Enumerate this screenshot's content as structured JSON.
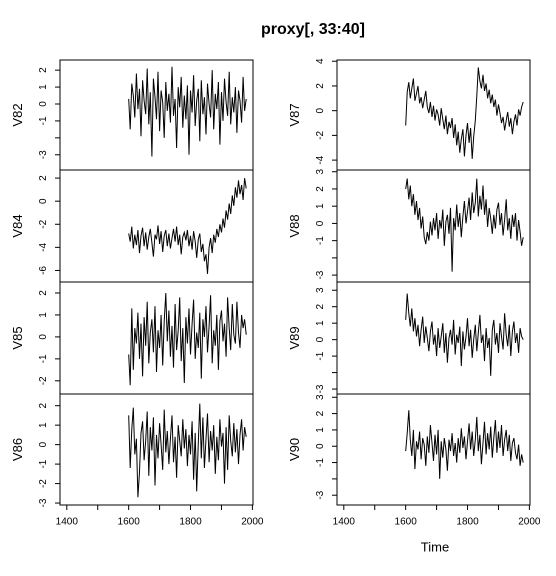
{
  "title": "proxy[, 33:40]",
  "chart_data": {
    "type": "line",
    "xlabel": "Time",
    "color": "#000000",
    "xlim": [
      1378,
      2002
    ],
    "xticks": [
      1400,
      1600,
      1800,
      2000
    ],
    "xminor_ticks": [
      1500,
      1700,
      1900
    ],
    "x": [
      1600,
      1605,
      1610,
      1615,
      1620,
      1625,
      1630,
      1635,
      1640,
      1645,
      1650,
      1655,
      1660,
      1665,
      1670,
      1675,
      1680,
      1685,
      1690,
      1695,
      1700,
      1705,
      1710,
      1715,
      1720,
      1725,
      1730,
      1735,
      1740,
      1745,
      1750,
      1755,
      1760,
      1765,
      1770,
      1775,
      1780,
      1785,
      1790,
      1795,
      1800,
      1805,
      1810,
      1815,
      1820,
      1825,
      1830,
      1835,
      1840,
      1845,
      1850,
      1855,
      1860,
      1865,
      1870,
      1875,
      1880,
      1885,
      1890,
      1895,
      1900,
      1905,
      1910,
      1915,
      1920,
      1925,
      1930,
      1935,
      1940,
      1945,
      1950,
      1955,
      1960,
      1965,
      1970,
      1975,
      1980
    ],
    "series": [
      {
        "name": "V82",
        "ylim": [
          -3.9,
          2.6
        ],
        "yticks": [
          -3,
          -1,
          0,
          1,
          2
        ],
        "yminor_ticks": [
          -2
        ],
        "values": [
          0.3,
          -1.5,
          1.2,
          0.5,
          -0.8,
          1.8,
          -0.3,
          0.9,
          -1.9,
          1.4,
          0.2,
          -0.6,
          2.1,
          -1.2,
          0.7,
          -3.1,
          1.5,
          0.4,
          -0.9,
          1.9,
          -1.6,
          0.8,
          0.1,
          -2.0,
          1.3,
          -0.4,
          0.6,
          -1.1,
          2.2,
          -0.7,
          0.3,
          -2.6,
          1.0,
          -0.2,
          1.6,
          -1.4,
          0.5,
          -0.9,
          1.1,
          -3.0,
          0.8,
          -0.5,
          1.7,
          -1.3,
          0.2,
          0.9,
          -2.2,
          1.4,
          -0.6,
          0.4,
          -1.8,
          1.2,
          0.0,
          -0.8,
          2.0,
          -1.5,
          0.6,
          -0.3,
          1.3,
          -2.4,
          0.7,
          -1.0,
          1.5,
          0.1,
          -0.7,
          1.9,
          -1.2,
          0.4,
          -0.5,
          1.0,
          -1.7,
          0.8,
          0.2,
          -1.1,
          1.6,
          -0.4,
          0.3
        ]
      },
      {
        "name": "V84",
        "ylim": [
          -7,
          2.7
        ],
        "yticks": [
          -6,
          -4,
          -2,
          0,
          2
        ],
        "values": [
          -2.8,
          -3.5,
          -2.2,
          -4.1,
          -2.9,
          -3.8,
          -2.5,
          -4.5,
          -3.0,
          -2.3,
          -3.9,
          -2.7,
          -4.2,
          -3.1,
          -2.4,
          -3.6,
          -4.8,
          -2.9,
          -3.3,
          -2.1,
          -3.7,
          -2.6,
          -4.4,
          -3.0,
          -2.5,
          -3.9,
          -2.8,
          -4.1,
          -3.2,
          -2.4,
          -3.5,
          -2.2,
          -3.8,
          -2.9,
          -4.6,
          -3.1,
          -2.7,
          -3.4,
          -2.5,
          -3.9,
          -3.0,
          -4.2,
          -2.6,
          -3.5,
          -4.9,
          -3.3,
          -2.8,
          -4.4,
          -3.7,
          -5.2,
          -4.6,
          -6.3,
          -4.0,
          -3.2,
          -4.5,
          -2.9,
          -3.6,
          -2.4,
          -3.1,
          -2.0,
          -2.7,
          -1.5,
          -2.3,
          -0.8,
          -1.6,
          -0.2,
          -1.1,
          0.5,
          -0.4,
          1.2,
          0.3,
          1.8,
          0.6,
          1.4,
          0.1,
          2.0,
          1.1
        ]
      },
      {
        "name": "V85",
        "ylim": [
          -2.6,
          2.5
        ],
        "yticks": [
          -2,
          -1,
          0,
          1,
          2
        ],
        "values": [
          -0.8,
          -2.2,
          1.3,
          -1.5,
          0.4,
          -0.3,
          1.1,
          -1.0,
          0.6,
          -1.8,
          0.9,
          -0.4,
          1.6,
          -1.2,
          0.2,
          0.8,
          -0.7,
          1.4,
          -1.6,
          0.3,
          -0.5,
          1.0,
          -1.3,
          0.7,
          2.0,
          -0.2,
          1.2,
          -0.9,
          0.5,
          -1.4,
          1.5,
          -0.6,
          0.3,
          1.8,
          -1.1,
          0.4,
          -2.1,
          0.9,
          -0.3,
          1.3,
          -0.8,
          0.6,
          1.7,
          -1.0,
          0.2,
          -0.5,
          1.1,
          -1.9,
          0.8,
          0.0,
          1.4,
          -0.7,
          0.5,
          1.9,
          -1.2,
          0.3,
          -0.4,
          1.0,
          -1.5,
          0.7,
          1.2,
          -0.2,
          0.6,
          -0.9,
          1.8,
          0.4,
          -0.6,
          1.5,
          0.1,
          -0.3,
          1.6,
          0.2,
          -0.5,
          1.0,
          0.4,
          0.8,
          0.1
        ]
      },
      {
        "name": "V86",
        "ylim": [
          -3.1,
          2.6
        ],
        "yticks": [
          -3,
          -2,
          -1,
          0,
          1,
          2
        ],
        "values": [
          1.5,
          -1.2,
          0.8,
          1.9,
          -0.5,
          0.3,
          -2.7,
          -1.4,
          0.6,
          1.2,
          -0.8,
          0.2,
          1.7,
          -1.6,
          0.9,
          -0.3,
          1.4,
          -2.1,
          0.5,
          -0.7,
          1.1,
          0.0,
          -1.3,
          1.8,
          -0.4,
          0.7,
          -1.0,
          0.3,
          1.5,
          -0.9,
          0.4,
          -1.7,
          1.0,
          0.2,
          -0.6,
          1.3,
          -0.2,
          0.8,
          -1.1,
          0.5,
          -0.5,
          1.2,
          -1.8,
          0.6,
          -2.4,
          0.1,
          2.1,
          -0.7,
          1.4,
          -1.2,
          0.3,
          1.6,
          -0.9,
          0.7,
          -0.3,
          1.0,
          -1.5,
          0.4,
          -0.8,
          1.3,
          -0.1,
          0.6,
          -2.0,
          0.9,
          -1.3,
          1.5,
          0.2,
          -0.6,
          1.1,
          -0.4,
          0.8,
          -1.0,
          0.5,
          1.3,
          -0.3,
          0.9,
          0.4
        ]
      },
      {
        "name": "V87",
        "ylim": [
          -4.8,
          4.1
        ],
        "yticks": [
          -4,
          -2,
          0,
          2,
          4
        ],
        "values": [
          -1.2,
          1.5,
          2.3,
          1.0,
          1.8,
          2.6,
          0.8,
          1.4,
          2.0,
          0.6,
          1.1,
          0.2,
          0.9,
          1.6,
          0.3,
          -0.2,
          0.7,
          -0.5,
          0.4,
          -0.8,
          0.1,
          -0.3,
          -1.2,
          0.2,
          -0.7,
          -1.5,
          -0.4,
          -1.9,
          -0.9,
          -1.4,
          -0.6,
          -2.2,
          -1.1,
          -2.8,
          -1.7,
          -3.4,
          -2.3,
          -1.5,
          -3.7,
          -2.0,
          -1.0,
          -2.6,
          -1.4,
          -3.9,
          -2.1,
          -0.8,
          1.2,
          3.5,
          2.4,
          1.8,
          2.9,
          1.6,
          2.2,
          1.0,
          1.7,
          0.6,
          1.3,
          0.3,
          0.9,
          -0.4,
          0.5,
          -0.2,
          -1.0,
          -0.5,
          -1.6,
          -0.8,
          -0.1,
          -1.3,
          -0.6,
          -1.9,
          -0.9,
          -0.3,
          -1.2,
          0.1,
          -0.4,
          0.3,
          0.7
        ]
      },
      {
        "name": "V88",
        "ylim": [
          -3.4,
          3.1
        ],
        "yticks": [
          -3,
          -1,
          0,
          1,
          2,
          3
        ],
        "yminor_ticks": [
          -2
        ],
        "values": [
          2.0,
          2.6,
          1.4,
          2.2,
          1.0,
          1.7,
          0.5,
          1.3,
          0.2,
          0.9,
          -0.3,
          0.4,
          -0.8,
          -1.2,
          -0.5,
          -1.0,
          0.1,
          -0.7,
          0.3,
          -0.4,
          0.6,
          -0.9,
          0.2,
          -0.3,
          0.8,
          -1.3,
          0.1,
          0.5,
          -0.6,
          0.9,
          -2.8,
          0.3,
          -0.4,
          1.1,
          -0.2,
          0.6,
          -0.8,
          0.4,
          1.3,
          0.0,
          0.7,
          1.5,
          0.2,
          1.8,
          0.6,
          1.2,
          2.6,
          0.4,
          1.6,
          0.8,
          2.2,
          0.5,
          1.4,
          -0.2,
          0.9,
          0.3,
          -0.6,
          0.5,
          -0.3,
          0.8,
          1.2,
          -0.1,
          0.6,
          -0.7,
          0.2,
          1.4,
          -0.4,
          0.3,
          -0.9,
          0.5,
          -0.2,
          0.6,
          -1.0,
          0.2,
          -0.5,
          -1.3,
          -0.8
        ]
      },
      {
        "name": "V89",
        "ylim": [
          -3.3,
          3.5
        ],
        "yticks": [
          -3,
          -1,
          0,
          1,
          2,
          3
        ],
        "yminor_ticks": [
          -2
        ],
        "values": [
          1.2,
          2.8,
          1.6,
          0.8,
          1.9,
          0.5,
          1.3,
          0.2,
          0.9,
          -0.4,
          0.6,
          1.4,
          -0.2,
          0.8,
          0.1,
          -0.7,
          0.5,
          1.1,
          -0.3,
          0.3,
          -1.0,
          0.7,
          -0.5,
          0.2,
          1.0,
          -0.8,
          0.4,
          -1.4,
          0.1,
          0.6,
          -0.3,
          1.2,
          -0.9,
          0.3,
          -0.2,
          0.8,
          -1.6,
          0.5,
          -0.6,
          0.2,
          1.3,
          -0.4,
          0.6,
          -1.1,
          0.0,
          0.9,
          -0.7,
          0.4,
          1.5,
          -0.2,
          0.3,
          -1.3,
          0.7,
          -0.5,
          0.1,
          -2.2,
          0.6,
          1.2,
          -0.3,
          0.4,
          -0.8,
          1.0,
          0.2,
          -0.6,
          1.6,
          0.3,
          -0.4,
          0.9,
          -1.0,
          0.5,
          1.1,
          -0.2,
          0.4,
          -0.8,
          0.7,
          0.2,
          0.0
        ]
      },
      {
        "name": "V90",
        "ylim": [
          -3.6,
          3.2
        ],
        "yticks": [
          -3,
          -1,
          0,
          1,
          2,
          3
        ],
        "yminor_ticks": [
          -2
        ],
        "values": [
          -0.3,
          0.8,
          2.2,
          0.4,
          -0.6,
          1.0,
          -1.4,
          0.3,
          -0.2,
          0.9,
          -0.8,
          0.5,
          0.1,
          -1.2,
          0.6,
          -0.4,
          1.3,
          0.2,
          -0.9,
          0.7,
          -0.5,
          1.0,
          -2.0,
          0.3,
          -0.7,
          0.5,
          -0.2,
          -1.5,
          0.4,
          -0.3,
          0.8,
          -0.6,
          0.2,
          -1.0,
          0.5,
          -0.4,
          1.1,
          -0.1,
          0.6,
          -0.8,
          0.3,
          1.4,
          -0.2,
          0.9,
          -0.6,
          0.4,
          1.8,
          -0.3,
          0.7,
          -1.1,
          0.2,
          1.5,
          -0.5,
          0.8,
          -0.2,
          1.2,
          -0.7,
          0.5,
          1.6,
          -0.4,
          0.9,
          -0.1,
          1.3,
          -0.6,
          0.4,
          1.0,
          -0.3,
          0.7,
          -0.9,
          0.2,
          0.5,
          -0.4,
          -0.8,
          0.1,
          -1.2,
          -0.5,
          -1.0
        ]
      }
    ]
  }
}
